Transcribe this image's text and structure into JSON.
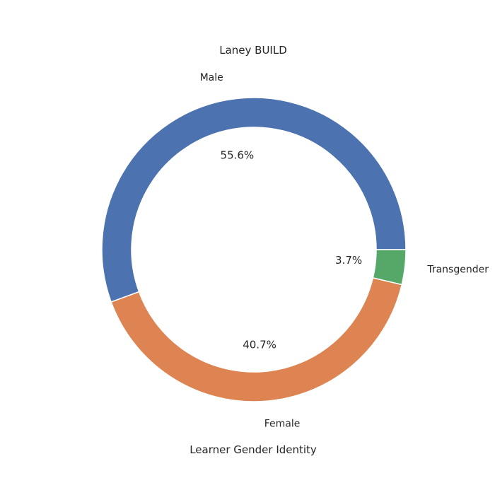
{
  "chart_data": {
    "type": "pie",
    "title": "Laney BUILD",
    "xlabel": "Learner Gender Identity",
    "slices": [
      {
        "label": "Male",
        "value": 55.6,
        "pct_label": "55.6%",
        "color": "#4c72b0"
      },
      {
        "label": "Female",
        "value": 40.7,
        "pct_label": "40.7%",
        "color": "#dd8452"
      },
      {
        "label": "Transgender",
        "value": 3.7,
        "pct_label": "3.7%",
        "color": "#55a868"
      }
    ],
    "donut": true,
    "start_angle_deg": 0,
    "direction": "counterclockwise",
    "wedge_edge_color": "#ffffff"
  }
}
